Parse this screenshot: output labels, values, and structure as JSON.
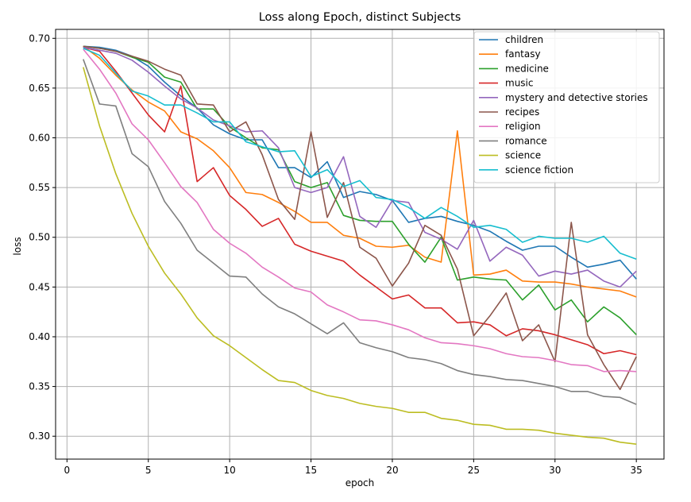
{
  "chart_data": {
    "type": "line",
    "title": "Loss along Epoch, distinct Subjects",
    "xlabel": "epoch",
    "ylabel": "loss",
    "xlim": [
      -0.7,
      36.7
    ],
    "ylim": [
      0.277,
      0.709
    ],
    "xticks": [
      0,
      5,
      10,
      15,
      20,
      25,
      30,
      35
    ],
    "yticks": [
      0.3,
      0.35,
      0.4,
      0.45,
      0.5,
      0.55,
      0.6,
      0.65,
      0.7
    ],
    "ytick_labels": [
      "0.30",
      "0.35",
      "0.40",
      "0.45",
      "0.50",
      "0.55",
      "0.60",
      "0.65",
      "0.70"
    ],
    "grid": true,
    "legend_position": "top-right",
    "x": [
      1,
      2,
      3,
      4,
      5,
      6,
      7,
      8,
      9,
      10,
      11,
      12,
      13,
      14,
      15,
      16,
      17,
      18,
      19,
      20,
      21,
      22,
      23,
      24,
      25,
      26,
      27,
      28,
      29,
      30,
      31,
      32,
      33,
      34,
      35
    ],
    "series": [
      {
        "name": "children",
        "color": "#1f77b4",
        "values": [
          0.692,
          0.691,
          0.688,
          0.682,
          0.672,
          0.656,
          0.642,
          0.63,
          0.613,
          0.604,
          0.598,
          0.598,
          0.57,
          0.57,
          0.56,
          0.576,
          0.54,
          0.546,
          0.543,
          0.537,
          0.515,
          0.519,
          0.521,
          0.516,
          0.512,
          0.506,
          0.496,
          0.487,
          0.491,
          0.491,
          0.48,
          0.47,
          0.473,
          0.477,
          0.458
        ]
      },
      {
        "name": "fantasy",
        "color": "#ff7f0e",
        "values": [
          0.692,
          0.68,
          0.663,
          0.648,
          0.636,
          0.627,
          0.606,
          0.599,
          0.587,
          0.57,
          0.545,
          0.543,
          0.535,
          0.526,
          0.515,
          0.515,
          0.502,
          0.499,
          0.491,
          0.49,
          0.492,
          0.48,
          0.475,
          0.607,
          0.462,
          0.463,
          0.467,
          0.456,
          0.455,
          0.455,
          0.453,
          0.45,
          0.448,
          0.446,
          0.44
        ]
      },
      {
        "name": "medicine",
        "color": "#2ca02c",
        "values": [
          0.692,
          0.69,
          0.687,
          0.681,
          0.676,
          0.661,
          0.656,
          0.629,
          0.629,
          0.611,
          0.6,
          0.59,
          0.588,
          0.556,
          0.55,
          0.555,
          0.522,
          0.517,
          0.516,
          0.516,
          0.493,
          0.475,
          0.5,
          0.457,
          0.46,
          0.458,
          0.457,
          0.437,
          0.452,
          0.427,
          0.437,
          0.415,
          0.43,
          0.419,
          0.402
        ]
      },
      {
        "name": "music",
        "color": "#d62728",
        "values": [
          0.691,
          0.687,
          0.667,
          0.645,
          0.623,
          0.606,
          0.652,
          0.556,
          0.57,
          0.542,
          0.528,
          0.511,
          0.519,
          0.493,
          0.486,
          0.481,
          0.476,
          0.462,
          0.45,
          0.438,
          0.442,
          0.429,
          0.429,
          0.414,
          0.415,
          0.412,
          0.401,
          0.408,
          0.406,
          0.402,
          0.397,
          0.392,
          0.383,
          0.386,
          0.382
        ]
      },
      {
        "name": "mystery and detective stories",
        "color": "#9467bd",
        "values": [
          0.691,
          0.688,
          0.685,
          0.678,
          0.666,
          0.652,
          0.639,
          0.63,
          0.618,
          0.612,
          0.606,
          0.607,
          0.59,
          0.55,
          0.545,
          0.55,
          0.581,
          0.521,
          0.51,
          0.537,
          0.535,
          0.505,
          0.498,
          0.488,
          0.517,
          0.476,
          0.49,
          0.482,
          0.461,
          0.466,
          0.463,
          0.467,
          0.456,
          0.45,
          0.466
        ]
      },
      {
        "name": "recipes",
        "color": "#8c564b",
        "values": [
          0.692,
          0.69,
          0.687,
          0.682,
          0.677,
          0.669,
          0.663,
          0.634,
          0.633,
          0.606,
          0.616,
          0.583,
          0.538,
          0.518,
          0.606,
          0.52,
          0.555,
          0.49,
          0.479,
          0.451,
          0.474,
          0.512,
          0.502,
          0.468,
          0.401,
          0.421,
          0.444,
          0.396,
          0.412,
          0.375,
          0.515,
          0.402,
          0.372,
          0.347,
          0.38
        ]
      },
      {
        "name": "religion",
        "color": "#e377c2",
        "values": [
          0.689,
          0.669,
          0.645,
          0.614,
          0.598,
          0.575,
          0.551,
          0.535,
          0.508,
          0.494,
          0.484,
          0.47,
          0.46,
          0.449,
          0.445,
          0.432,
          0.425,
          0.417,
          0.416,
          0.412,
          0.407,
          0.399,
          0.394,
          0.393,
          0.391,
          0.388,
          0.383,
          0.38,
          0.379,
          0.376,
          0.372,
          0.371,
          0.365,
          0.366,
          0.365
        ]
      },
      {
        "name": "romance",
        "color": "#7f7f7f",
        "values": [
          0.679,
          0.634,
          0.632,
          0.584,
          0.571,
          0.536,
          0.514,
          0.487,
          0.474,
          0.461,
          0.46,
          0.443,
          0.43,
          0.423,
          0.413,
          0.403,
          0.414,
          0.394,
          0.389,
          0.385,
          0.379,
          0.377,
          0.373,
          0.366,
          0.362,
          0.36,
          0.357,
          0.356,
          0.353,
          0.35,
          0.345,
          0.345,
          0.34,
          0.339,
          0.332
        ]
      },
      {
        "name": "science",
        "color": "#bcbd22",
        "values": [
          0.671,
          0.612,
          0.564,
          0.524,
          0.491,
          0.464,
          0.443,
          0.419,
          0.401,
          0.391,
          0.379,
          0.367,
          0.356,
          0.354,
          0.346,
          0.341,
          0.338,
          0.333,
          0.33,
          0.328,
          0.324,
          0.324,
          0.318,
          0.316,
          0.312,
          0.311,
          0.307,
          0.307,
          0.306,
          0.303,
          0.301,
          0.299,
          0.298,
          0.294,
          0.292
        ]
      },
      {
        "name": "science fiction",
        "color": "#17becf",
        "values": [
          0.69,
          0.683,
          0.665,
          0.647,
          0.642,
          0.633,
          0.633,
          0.625,
          0.616,
          0.616,
          0.596,
          0.591,
          0.586,
          0.587,
          0.561,
          0.568,
          0.551,
          0.557,
          0.54,
          0.538,
          0.53,
          0.519,
          0.53,
          0.521,
          0.51,
          0.512,
          0.508,
          0.495,
          0.501,
          0.499,
          0.499,
          0.495,
          0.501,
          0.484,
          0.478
        ]
      }
    ]
  }
}
